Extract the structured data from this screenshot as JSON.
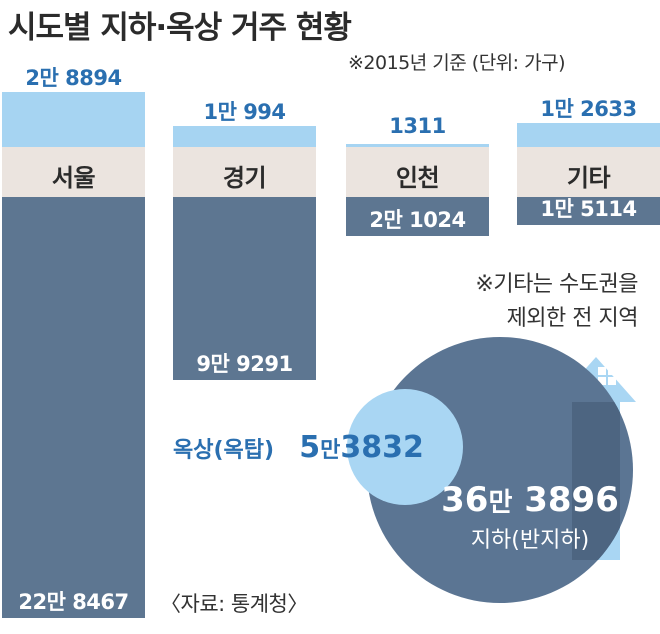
{
  "title": "시도별 지하·옥상 거주 현황",
  "subtitle": "※2015년 기준  (단위: 가구)",
  "source": "〈자료: 통계청〉",
  "note_line1": "※기타는 수도권을",
  "note_line2": "제외한 전 지역",
  "colors": {
    "rooftop": "#a6d4f2",
    "rooftop_text": "#2a6fb0",
    "basement": "#5d7691",
    "label_band": "#ebe4df",
    "big_circle": "#5b7593",
    "small_circle": "#a9d6f3"
  },
  "chart_data": {
    "type": "bar",
    "categories": [
      "서울",
      "경기",
      "인천",
      "기타"
    ],
    "series": [
      {
        "name": "옥상(옥탑)",
        "values": [
          28894,
          10994,
          1311,
          12633
        ],
        "labels": [
          "2만 8894",
          "1만 994",
          "1311",
          "1만 2633"
        ]
      },
      {
        "name": "지하(반지하)",
        "values": [
          228467,
          99291,
          21024,
          15114
        ],
        "labels": [
          "22만 8467",
          "9만 9291",
          "2만 1024",
          "1만 5114"
        ]
      }
    ]
  },
  "totals": {
    "rooftop": {
      "label": "옥상(옥탑)",
      "num_a": "5",
      "unit": "만",
      "num_b": "3832",
      "value": 53832
    },
    "basement": {
      "label": "지하(반지하)",
      "num_a": "36",
      "unit": "만",
      "num_b": "3896",
      "value": 363896
    }
  }
}
